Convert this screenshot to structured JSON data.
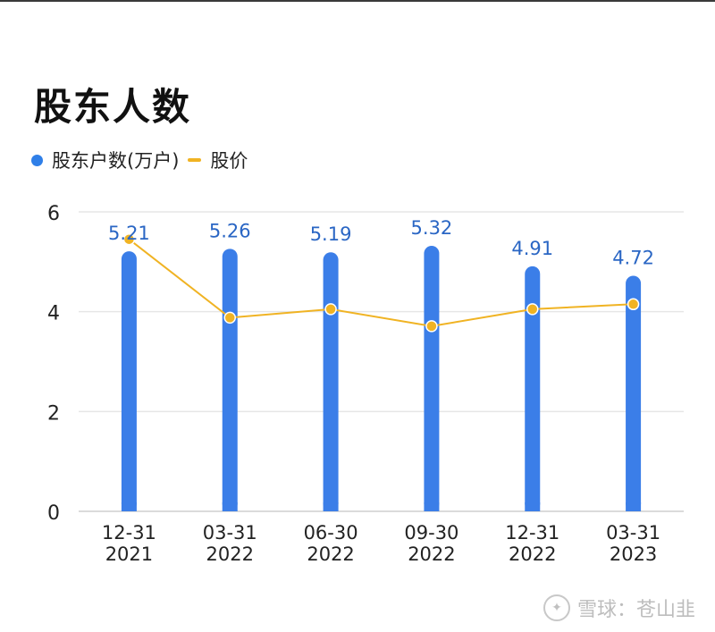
{
  "chart_title": "股东人数",
  "legend": {
    "bar_label": "股东户数(万户)",
    "line_label": "股价"
  },
  "watermark": "雪球：苍山韭",
  "colors": {
    "bar": "#3b7ee8",
    "line": "#f0b323",
    "grid": "#e6e6e6",
    "label": "#2a66c4"
  },
  "chart_data": {
    "type": "bar",
    "categories": [
      "12-31\n2021",
      "03-31\n2022",
      "06-30\n2022",
      "09-30\n2022",
      "12-31\n2022",
      "03-31\n2023"
    ],
    "ylim": [
      0,
      6
    ],
    "yticks": [
      0,
      2,
      4,
      6
    ],
    "grid": true,
    "legend_position": "top-left",
    "series": [
      {
        "name": "股东户数(万户)",
        "kind": "bar",
        "values": [
          5.21,
          5.26,
          5.19,
          5.32,
          4.91,
          4.72
        ]
      },
      {
        "name": "股价",
        "kind": "line",
        "values": [
          5.45,
          3.88,
          4.05,
          3.71,
          4.05,
          4.15
        ]
      }
    ]
  }
}
